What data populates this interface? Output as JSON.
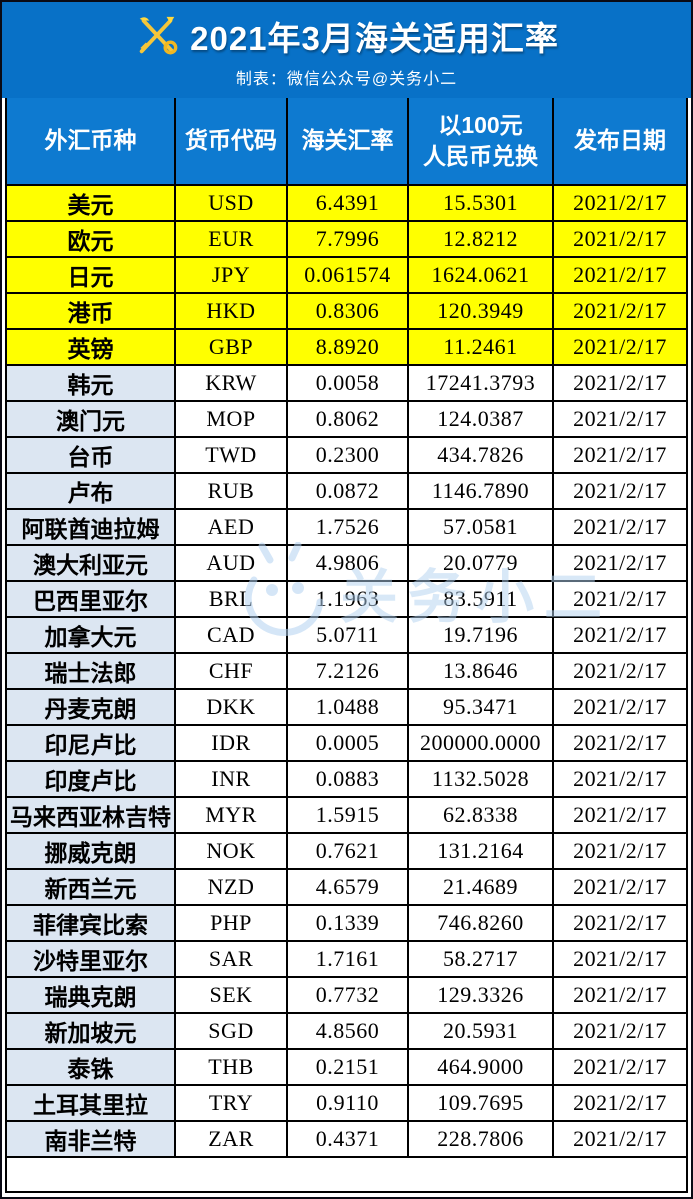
{
  "banner": {
    "title": "2021年3月海关适用汇率",
    "subtitle": "制表：微信公众号@关务小二",
    "emblem_icon": "customs-crossed-key-caduceus",
    "background_color": "#0871c7",
    "title_color": "#ffffff"
  },
  "watermark": {
    "text": "关务小二",
    "icon": "mascot-face"
  },
  "table": {
    "header_color": "#0e7ad0",
    "highlight_color": "#ffff00",
    "first_column_color": "#dce6f2",
    "columns": [
      {
        "label": "外汇币种"
      },
      {
        "label": "货币代码"
      },
      {
        "label": "海关汇率"
      },
      {
        "label": "以100元\n人民币兑换"
      },
      {
        "label": "发布日期"
      }
    ],
    "rows": [
      {
        "name": "美元",
        "code": "USD",
        "rate": "6.4391",
        "per100": "15.5301",
        "date": "2021/2/17",
        "highlighted": true
      },
      {
        "name": "欧元",
        "code": "EUR",
        "rate": "7.7996",
        "per100": "12.8212",
        "date": "2021/2/17",
        "highlighted": true
      },
      {
        "name": "日元",
        "code": "JPY",
        "rate": "0.061574",
        "per100": "1624.0621",
        "date": "2021/2/17",
        "highlighted": true
      },
      {
        "name": "港币",
        "code": "HKD",
        "rate": "0.8306",
        "per100": "120.3949",
        "date": "2021/2/17",
        "highlighted": true
      },
      {
        "name": "英镑",
        "code": "GBP",
        "rate": "8.8920",
        "per100": "11.2461",
        "date": "2021/2/17",
        "highlighted": true
      },
      {
        "name": "韩元",
        "code": "KRW",
        "rate": "0.0058",
        "per100": "17241.3793",
        "date": "2021/2/17",
        "highlighted": false
      },
      {
        "name": "澳门元",
        "code": "MOP",
        "rate": "0.8062",
        "per100": "124.0387",
        "date": "2021/2/17",
        "highlighted": false
      },
      {
        "name": "台币",
        "code": "TWD",
        "rate": "0.2300",
        "per100": "434.7826",
        "date": "2021/2/17",
        "highlighted": false
      },
      {
        "name": "卢布",
        "code": "RUB",
        "rate": "0.0872",
        "per100": "1146.7890",
        "date": "2021/2/17",
        "highlighted": false
      },
      {
        "name": "阿联酋迪拉姆",
        "code": "AED",
        "rate": "1.7526",
        "per100": "57.0581",
        "date": "2021/2/17",
        "highlighted": false
      },
      {
        "name": "澳大利亚元",
        "code": "AUD",
        "rate": "4.9806",
        "per100": "20.0779",
        "date": "2021/2/17",
        "highlighted": false
      },
      {
        "name": "巴西里亚尔",
        "code": "BRL",
        "rate": "1.1963",
        "per100": "83.5911",
        "date": "2021/2/17",
        "highlighted": false
      },
      {
        "name": "加拿大元",
        "code": "CAD",
        "rate": "5.0711",
        "per100": "19.7196",
        "date": "2021/2/17",
        "highlighted": false
      },
      {
        "name": "瑞士法郎",
        "code": "CHF",
        "rate": "7.2126",
        "per100": "13.8646",
        "date": "2021/2/17",
        "highlighted": false
      },
      {
        "name": "丹麦克朗",
        "code": "DKK",
        "rate": "1.0488",
        "per100": "95.3471",
        "date": "2021/2/17",
        "highlighted": false
      },
      {
        "name": "印尼卢比",
        "code": "IDR",
        "rate": "0.0005",
        "per100": "200000.0000",
        "date": "2021/2/17",
        "highlighted": false
      },
      {
        "name": "印度卢比",
        "code": "INR",
        "rate": "0.0883",
        "per100": "1132.5028",
        "date": "2021/2/17",
        "highlighted": false
      },
      {
        "name": "马来西亚林吉特",
        "code": "MYR",
        "rate": "1.5915",
        "per100": "62.8338",
        "date": "2021/2/17",
        "highlighted": false
      },
      {
        "name": "挪威克朗",
        "code": "NOK",
        "rate": "0.7621",
        "per100": "131.2164",
        "date": "2021/2/17",
        "highlighted": false
      },
      {
        "name": "新西兰元",
        "code": "NZD",
        "rate": "4.6579",
        "per100": "21.4689",
        "date": "2021/2/17",
        "highlighted": false
      },
      {
        "name": "菲律宾比索",
        "code": "PHP",
        "rate": "0.1339",
        "per100": "746.8260",
        "date": "2021/2/17",
        "highlighted": false
      },
      {
        "name": "沙特里亚尔",
        "code": "SAR",
        "rate": "1.7161",
        "per100": "58.2717",
        "date": "2021/2/17",
        "highlighted": false
      },
      {
        "name": "瑞典克朗",
        "code": "SEK",
        "rate": "0.7732",
        "per100": "129.3326",
        "date": "2021/2/17",
        "highlighted": false
      },
      {
        "name": "新加坡元",
        "code": "SGD",
        "rate": "4.8560",
        "per100": "20.5931",
        "date": "2021/2/17",
        "highlighted": false
      },
      {
        "name": "泰铢",
        "code": "THB",
        "rate": "0.2151",
        "per100": "464.9000",
        "date": "2021/2/17",
        "highlighted": false
      },
      {
        "name": "土耳其里拉",
        "code": "TRY",
        "rate": "0.9110",
        "per100": "109.7695",
        "date": "2021/2/17",
        "highlighted": false
      },
      {
        "name": "南非兰特",
        "code": "ZAR",
        "rate": "0.4371",
        "per100": "228.7806",
        "date": "2021/2/17",
        "highlighted": false
      }
    ]
  }
}
